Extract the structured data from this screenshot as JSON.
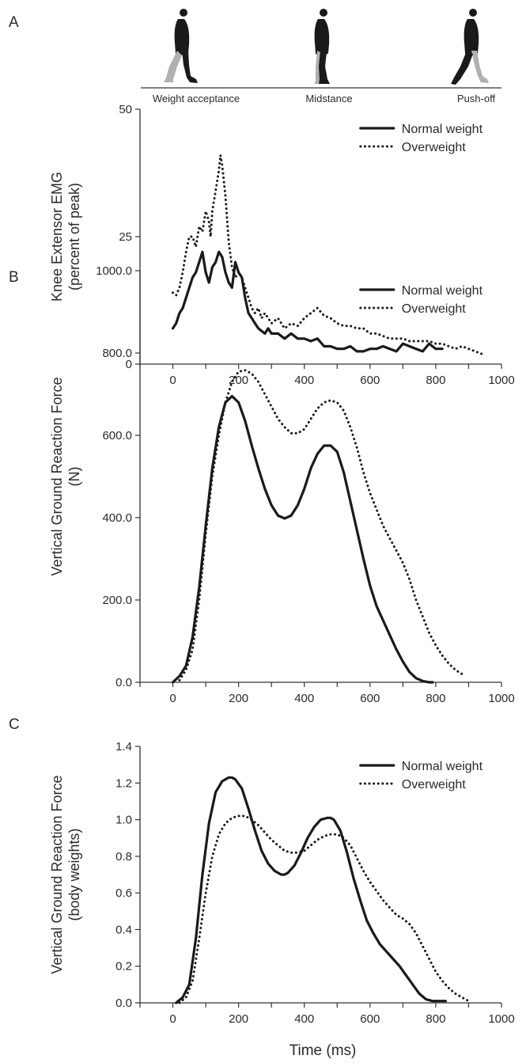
{
  "figure": {
    "x_title": "Time (ms)",
    "panels": [
      {
        "letter": "A"
      },
      {
        "letter": "B"
      },
      {
        "letter": "C"
      }
    ],
    "phases": [
      {
        "label": "Weight acceptance",
        "icon": "walker-weight-acceptance-icon"
      },
      {
        "label": "Midstance",
        "icon": "walker-midstance-icon"
      },
      {
        "label": "Push-off",
        "icon": "walker-push-off-icon"
      }
    ],
    "colors": {
      "line": "#1a1a1a",
      "axis": "#333333",
      "leg_shade": "#b0b0b0"
    }
  },
  "chart_data": [
    {
      "type": "line",
      "panel": "A",
      "ylabel_lines": [
        "Knee Extensor EMG",
        "(percent of peak)"
      ],
      "xlim": [
        -100,
        1000
      ],
      "ylim": [
        0,
        50
      ],
      "xticks": [
        "0",
        "200",
        "400",
        "600",
        "800",
        "1000"
      ],
      "yticks": [
        "0",
        "25",
        "50"
      ],
      "legend": "top-right",
      "series": [
        {
          "name": "Normal weight",
          "style": "solid",
          "x": [
            0,
            10,
            20,
            30,
            40,
            50,
            60,
            70,
            80,
            90,
            100,
            110,
            120,
            130,
            140,
            150,
            160,
            170,
            180,
            190,
            200,
            210,
            220,
            230,
            240,
            250,
            260,
            270,
            280,
            290,
            300,
            320,
            340,
            360,
            380,
            400,
            420,
            440,
            460,
            480,
            500,
            520,
            540,
            560,
            580,
            600,
            620,
            640,
            660,
            680,
            700,
            720,
            740,
            760,
            780,
            800,
            820
          ],
          "y": [
            7,
            8,
            10,
            11,
            13,
            15,
            17,
            18,
            20,
            22,
            18,
            16,
            19,
            20,
            22,
            21,
            18,
            16,
            15,
            20,
            18,
            17,
            13,
            10,
            9,
            8,
            7,
            6.5,
            6,
            7,
            6,
            6,
            5,
            6,
            5,
            5,
            4.5,
            5,
            3.5,
            3.5,
            3,
            3,
            3.5,
            2.5,
            2.5,
            3,
            3,
            3.5,
            3,
            2.5,
            4,
            3.5,
            3,
            2.5,
            4,
            3,
            3
          ]
        },
        {
          "name": "Overweight",
          "style": "dotted",
          "x": [
            0,
            10,
            20,
            30,
            40,
            50,
            60,
            70,
            80,
            90,
            100,
            110,
            115,
            120,
            130,
            140,
            145,
            150,
            160,
            170,
            180,
            190,
            200,
            210,
            220,
            230,
            240,
            250,
            260,
            270,
            280,
            300,
            320,
            340,
            360,
            380,
            400,
            420,
            440,
            460,
            480,
            500,
            520,
            540,
            560,
            580,
            600,
            620,
            640,
            660,
            680,
            700,
            720,
            740,
            760,
            780,
            800,
            820,
            840,
            860,
            880,
            900,
            920,
            940
          ],
          "y": [
            14,
            13.5,
            15,
            18,
            22,
            25,
            25,
            23,
            27,
            26,
            30,
            28,
            25,
            30,
            34,
            38,
            41,
            39,
            33,
            24,
            19,
            17,
            18,
            17,
            15,
            13,
            11,
            10,
            11,
            9,
            10,
            8,
            9,
            7,
            8,
            7.5,
            9,
            10,
            11,
            9.5,
            9,
            8,
            7.5,
            7.5,
            7,
            7,
            6,
            6,
            5.5,
            5,
            5,
            5,
            4.5,
            4.5,
            4.5,
            4.5,
            4,
            4,
            3.5,
            3,
            3.5,
            3,
            2.5,
            2
          ]
        }
      ]
    },
    {
      "type": "line",
      "panel": "B",
      "ylabel_lines": [
        "Vertical Ground Reaction Force",
        "(N)"
      ],
      "xlim": [
        -100,
        1000
      ],
      "ylim": [
        0,
        1000
      ],
      "xticks": [
        "0",
        "200",
        "400",
        "600",
        "800",
        "1000"
      ],
      "yticks": [
        "0.0",
        "200.0",
        "400.0",
        "600.0",
        "800.0",
        "1000.0"
      ],
      "legend": "top-right",
      "series": [
        {
          "name": "Normal weight",
          "style": "solid",
          "x": [
            0,
            20,
            40,
            60,
            80,
            100,
            120,
            140,
            160,
            180,
            200,
            220,
            240,
            260,
            280,
            300,
            320,
            340,
            360,
            380,
            400,
            420,
            440,
            460,
            480,
            500,
            520,
            540,
            560,
            580,
            600,
            620,
            640,
            660,
            680,
            700,
            720,
            740,
            760,
            780,
            790
          ],
          "y": [
            0,
            15,
            40,
            110,
            230,
            380,
            520,
            620,
            680,
            695,
            680,
            635,
            575,
            520,
            470,
            430,
            405,
            398,
            405,
            430,
            470,
            520,
            555,
            575,
            575,
            560,
            510,
            440,
            370,
            300,
            235,
            185,
            150,
            115,
            80,
            50,
            25,
            10,
            3,
            0,
            0
          ]
        },
        {
          "name": "Overweight",
          "style": "dotted",
          "x": [
            20,
            40,
            60,
            80,
            100,
            120,
            140,
            160,
            180,
            200,
            220,
            240,
            260,
            280,
            300,
            320,
            340,
            360,
            380,
            400,
            420,
            440,
            460,
            480,
            500,
            520,
            540,
            560,
            580,
            600,
            620,
            640,
            660,
            680,
            700,
            720,
            740,
            760,
            780,
            800,
            820,
            840,
            860,
            880
          ],
          "y": [
            5,
            30,
            80,
            200,
            360,
            500,
            600,
            680,
            730,
            755,
            758,
            750,
            730,
            700,
            670,
            640,
            620,
            605,
            605,
            615,
            640,
            665,
            680,
            685,
            680,
            660,
            620,
            570,
            510,
            460,
            420,
            380,
            350,
            320,
            290,
            250,
            200,
            160,
            120,
            90,
            65,
            45,
            30,
            20
          ]
        }
      ]
    },
    {
      "type": "line",
      "panel": "C",
      "ylabel_lines": [
        "Vertical Ground Reaction Force",
        "(body weights)"
      ],
      "xlim": [
        -100,
        1000
      ],
      "ylim": [
        0,
        1.4
      ],
      "xticks": [
        "0",
        "200",
        "400",
        "600",
        "800",
        "1000"
      ],
      "yticks": [
        "0.0",
        "0.2",
        "0.4",
        "0.6",
        "0.8",
        "1.0",
        "1.2",
        "1.4"
      ],
      "legend": "top-right",
      "series": [
        {
          "name": "Normal weight",
          "style": "solid",
          "x": [
            10,
            30,
            50,
            70,
            90,
            110,
            130,
            150,
            170,
            180,
            190,
            210,
            230,
            250,
            270,
            290,
            310,
            330,
            340,
            350,
            370,
            390,
            410,
            430,
            450,
            470,
            480,
            490,
            510,
            530,
            550,
            570,
            590,
            610,
            630,
            650,
            670,
            690,
            710,
            730,
            750,
            770,
            790,
            810,
            830
          ],
          "y": [
            0,
            0.03,
            0.1,
            0.35,
            0.7,
            0.98,
            1.15,
            1.21,
            1.23,
            1.23,
            1.22,
            1.17,
            1.06,
            0.94,
            0.83,
            0.76,
            0.72,
            0.7,
            0.7,
            0.71,
            0.75,
            0.82,
            0.9,
            0.96,
            1.0,
            1.01,
            1.01,
            1.0,
            0.94,
            0.82,
            0.68,
            0.56,
            0.45,
            0.38,
            0.32,
            0.28,
            0.24,
            0.2,
            0.15,
            0.1,
            0.05,
            0.02,
            0.01,
            0.01,
            0.01
          ]
        },
        {
          "name": "Overweight",
          "style": "dotted",
          "x": [
            20,
            40,
            60,
            80,
            100,
            120,
            140,
            160,
            180,
            200,
            220,
            240,
            260,
            280,
            300,
            320,
            340,
            360,
            380,
            400,
            420,
            440,
            460,
            480,
            500,
            520,
            540,
            560,
            580,
            600,
            620,
            640,
            660,
            680,
            700,
            720,
            740,
            760,
            780,
            800,
            820,
            840,
            860,
            880,
            900
          ],
          "y": [
            0,
            0.03,
            0.12,
            0.35,
            0.6,
            0.8,
            0.92,
            0.98,
            1.01,
            1.02,
            1.02,
            1.0,
            0.97,
            0.93,
            0.89,
            0.86,
            0.83,
            0.82,
            0.82,
            0.83,
            0.86,
            0.89,
            0.91,
            0.92,
            0.92,
            0.9,
            0.86,
            0.79,
            0.72,
            0.66,
            0.61,
            0.56,
            0.52,
            0.48,
            0.46,
            0.43,
            0.38,
            0.31,
            0.24,
            0.17,
            0.12,
            0.08,
            0.05,
            0.03,
            0.01
          ]
        }
      ]
    }
  ]
}
